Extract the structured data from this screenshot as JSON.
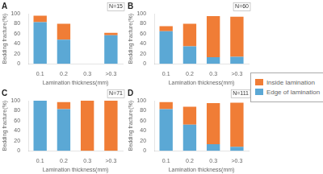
{
  "chart_data": [
    {
      "type": "bar",
      "stacked": true,
      "title": "A",
      "annotations": [
        "N=15"
      ],
      "xlabel": "Lamination thickness(mm)",
      "ylabel": "Bedding fracture(%)",
      "categories": [
        "0.1",
        "0.2",
        "0.3",
        ">0.3"
      ],
      "series": [
        {
          "name": "Edge of lamination",
          "color": "#5ba8d5",
          "values": [
            83,
            48,
            0,
            57
          ]
        },
        {
          "name": "Inside lamination",
          "color": "#f07d36",
          "values": [
            13,
            32,
            0,
            5
          ]
        }
      ],
      "ylim": [
        0,
        100
      ],
      "yticks": [
        0,
        20,
        40,
        60,
        80,
        100
      ],
      "grid": false,
      "legend": "right"
    },
    {
      "type": "bar",
      "stacked": true,
      "title": "B",
      "annotations": [
        "N=60"
      ],
      "xlabel": "Lamination thickness(mm)",
      "ylabel": "Bedding fracture(%)",
      "categories": [
        "0.1",
        "0.2",
        "0.3",
        ">0.3"
      ],
      "series": [
        {
          "name": "Edge of lamination",
          "color": "#5ba8d5",
          "values": [
            65,
            35,
            13,
            14
          ]
        },
        {
          "name": "Inside lamination",
          "color": "#f07d36",
          "values": [
            10,
            45,
            82,
            80
          ]
        }
      ],
      "ylim": [
        0,
        100
      ],
      "yticks": [
        0,
        20,
        40,
        60,
        80,
        100
      ],
      "grid": false,
      "legend": "right"
    },
    {
      "type": "bar",
      "stacked": true,
      "title": "C",
      "annotations": [
        "N=71"
      ],
      "xlabel": "Lamination thickness(mm)",
      "ylabel": "Bedding fracture(%)",
      "categories": [
        "0.1",
        "0.2",
        "0.3",
        ">0.3"
      ],
      "series": [
        {
          "name": "Edge of lamination",
          "color": "#5ba8d5",
          "values": [
            100,
            83,
            0,
            0
          ]
        },
        {
          "name": "Inside lamination",
          "color": "#f07d36",
          "values": [
            0,
            14,
            100,
            100
          ]
        }
      ],
      "ylim": [
        0,
        100
      ],
      "yticks": [
        0,
        20,
        40,
        60,
        80,
        100
      ],
      "grid": false,
      "legend": "right"
    },
    {
      "type": "bar",
      "stacked": true,
      "title": "D",
      "annotations": [
        "N=111"
      ],
      "xlabel": "Lamination thickness(mm)",
      "ylabel": "Bedding fracture(%)",
      "categories": [
        "0.1",
        "0.2",
        "0.3",
        ">0.3"
      ],
      "series": [
        {
          "name": "Edge of lamination",
          "color": "#5ba8d5",
          "values": [
            83,
            52,
            13,
            8
          ]
        },
        {
          "name": "Inside lamination",
          "color": "#f07d36",
          "values": [
            14,
            36,
            82,
            88
          ]
        }
      ],
      "ylim": [
        0,
        100
      ],
      "yticks": [
        0,
        20,
        40,
        60,
        80,
        100
      ],
      "grid": false,
      "legend": "right"
    }
  ]
}
